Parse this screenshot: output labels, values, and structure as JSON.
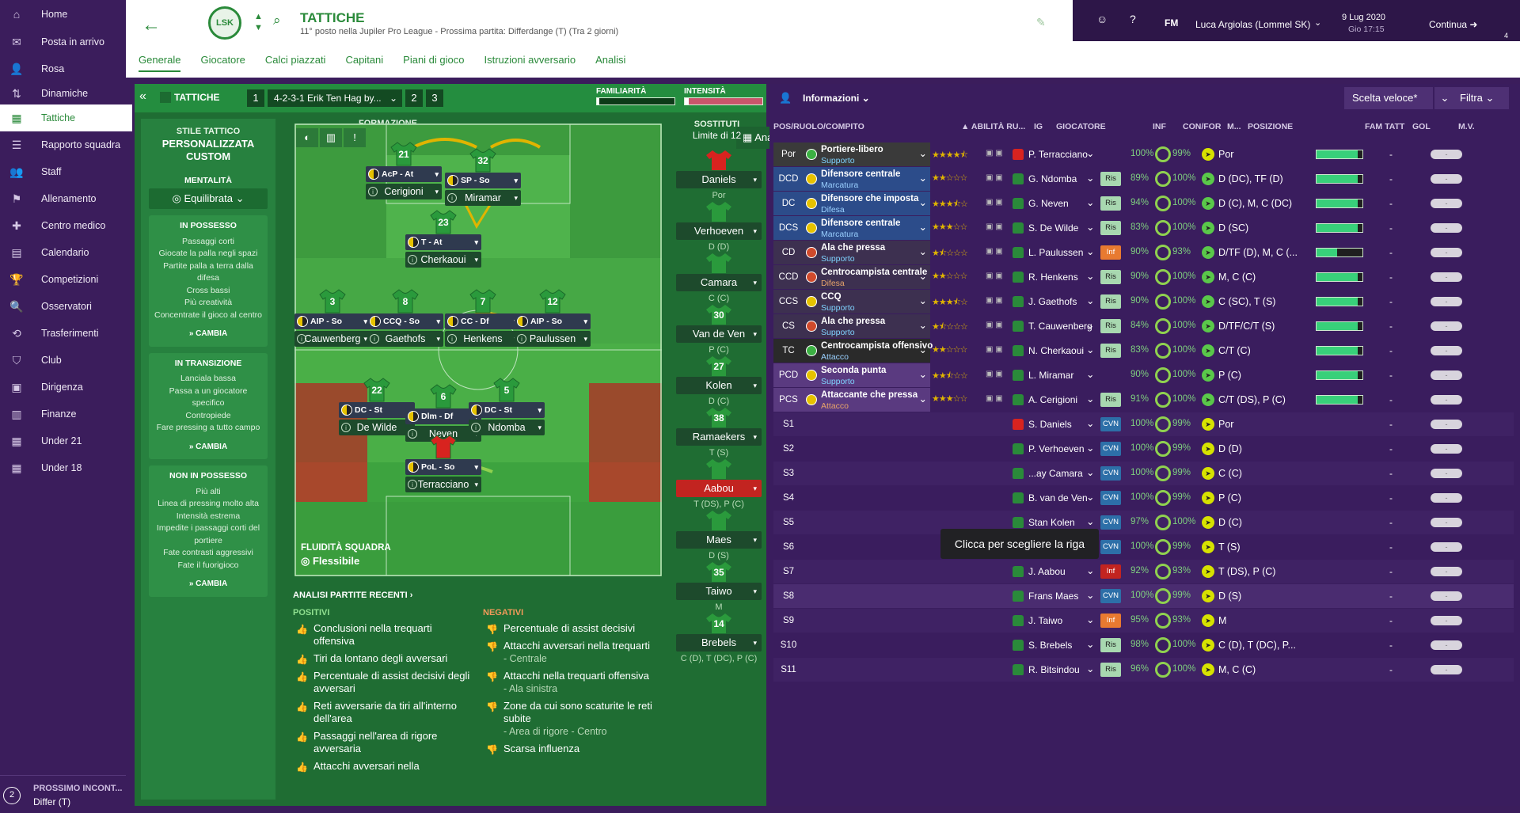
{
  "sidebar": {
    "items": [
      {
        "label": "Home",
        "icon": "home-icon",
        "glyph": "⌂"
      },
      {
        "label": "Posta in arrivo",
        "icon": "inbox-icon",
        "glyph": "✉"
      },
      {
        "label": "Rosa",
        "icon": "squad-icon",
        "glyph": "👤"
      },
      {
        "label": "Dinamiche",
        "icon": "dynamics-icon",
        "glyph": "⇅"
      },
      {
        "label": "Tattiche",
        "icon": "tactics-icon",
        "glyph": "▦"
      },
      {
        "label": "Rapporto squadra",
        "icon": "report-icon",
        "glyph": "☰"
      },
      {
        "label": "Staff",
        "icon": "staff-icon",
        "glyph": "👥"
      },
      {
        "label": "Allenamento",
        "icon": "training-icon",
        "glyph": "⚑"
      },
      {
        "label": "Centro medico",
        "icon": "medical-icon",
        "glyph": "✚"
      },
      {
        "label": "Calendario",
        "icon": "calendar-icon",
        "glyph": "▤"
      },
      {
        "label": "Competizioni",
        "icon": "trophy-icon",
        "glyph": "🏆"
      },
      {
        "label": "Osservatori",
        "icon": "scout-icon",
        "glyph": "🔍"
      },
      {
        "label": "Trasferimenti",
        "icon": "transfer-icon",
        "glyph": "⟲"
      },
      {
        "label": "Club",
        "icon": "club-icon",
        "glyph": "⛉"
      },
      {
        "label": "Dirigenza",
        "icon": "board-icon",
        "glyph": "▣"
      },
      {
        "label": "Finanze",
        "icon": "finance-icon",
        "glyph": "▥"
      },
      {
        "label": "Under 21",
        "icon": "u21-icon",
        "glyph": "▦"
      },
      {
        "label": "Under 18",
        "icon": "u18-icon",
        "glyph": "▦"
      }
    ],
    "next_match_label": "PROSSIMO INCONT...",
    "next_match_value": "Differ (T)",
    "next_badge": "2"
  },
  "header": {
    "title": "TATTICHE",
    "subtitle": "11° posto nella Jupiler Pro League - Prossima partita: Differdange (T) (Tra 2 giorni)",
    "tabs": [
      "Generale",
      "Giocatore",
      "Calci piazzati",
      "Capitani",
      "Piani di gioco",
      "Istruzioni avversario",
      "Analisi"
    ]
  },
  "topbar": {
    "manager": "Luca Argiolas (Lommel SK)",
    "fm": "FM",
    "date": "9 Lug 2020",
    "time": "Gio 17:15",
    "continue": "Continua",
    "badge": "4"
  },
  "tactic_bar": {
    "title": "TATTICHE",
    "slot1": "1",
    "tactic_name": "4-2-3-1 Erik Ten Hag by...",
    "slot2": "2",
    "slot3": "3",
    "familiarity_label": "FAMILIARITÀ",
    "intensity_label": "INTENSITÀ",
    "familiarity": 0.03,
    "intensity": 0.05
  },
  "style": {
    "label": "STILE TATTICO",
    "value": "PERSONALIZZATA CUSTOM",
    "mentality_label": "MENTALITÀ",
    "mentality": "Equilibrata",
    "in_possession": {
      "title": "IN POSSESSO",
      "items": [
        "Passaggi corti",
        "Giocate la palla negli spazi",
        "Partite palla a terra dalla difesa",
        "Cross bassi",
        "Più creatività",
        "Concentrate il gioco al centro"
      ],
      "change": "CAMBIA"
    },
    "transition": {
      "title": "IN TRANSIZIONE",
      "items": [
        "Lanciala bassa",
        "Passa a un giocatore specifico",
        "Contropiede",
        "Fare pressing a tutto campo"
      ],
      "change": "CAMBIA"
    },
    "out_possession": {
      "title": "NON IN POSSESSO",
      "items": [
        "Più alti",
        "Linea di pressing molto alta",
        "Intensità estrema",
        "Impedite i passaggi corti del portiere",
        "Fate contrasti aggressivi",
        "Fate il fuorigioco"
      ],
      "change": "CAMBIA"
    }
  },
  "formation": {
    "label": "FORMAZIONE",
    "value": "3-4-1-2",
    "analysis": "Analisi",
    "fluidity_label": "FLUIDITÀ SQUADRA",
    "fluidity": "Flessibile"
  },
  "pitch_players": [
    {
      "num": "21",
      "role": "AcP - At",
      "name": "Cerigioni"
    },
    {
      "num": "32",
      "role": "SP - So",
      "name": "Miramar"
    },
    {
      "num": "23",
      "role": "T - At",
      "name": "Cherkaoui"
    },
    {
      "num": "3",
      "role": "AIP - So",
      "name": "Cauwenberg"
    },
    {
      "num": "8",
      "role": "CCQ - So",
      "name": "Gaethofs"
    },
    {
      "num": "7",
      "role": "CC - Df",
      "name": "Henkens"
    },
    {
      "num": "12",
      "role": "AIP - So",
      "name": "Paulussen"
    },
    {
      "num": "22",
      "role": "DC - St",
      "name": "De Wilde"
    },
    {
      "num": "6",
      "role": "Dlm - Df",
      "name": "Neven"
    },
    {
      "num": "5",
      "role": "DC - St",
      "name": "Ndomba"
    },
    {
      "num": "",
      "role": "PoL - So",
      "name": "Terracciano"
    }
  ],
  "subs": {
    "label": "SOSTITUTI",
    "limit": "Limite di 12",
    "list": [
      {
        "num": "",
        "name": "Daniels",
        "pos": "Por"
      },
      {
        "num": "",
        "name": "Verhoeven",
        "pos": "D (D)"
      },
      {
        "num": "",
        "name": "Camara",
        "pos": "C (C)"
      },
      {
        "num": "30",
        "name": "Van de Ven",
        "pos": "P (C)"
      },
      {
        "num": "27",
        "name": "Kolen",
        "pos": "D (C)"
      },
      {
        "num": "38",
        "name": "Ramaekers",
        "pos": "T (S)"
      },
      {
        "num": "",
        "name": "Aabou",
        "pos": "T (DS), P (C)"
      },
      {
        "num": "",
        "name": "Maes",
        "pos": "D (S)"
      },
      {
        "num": "35",
        "name": "Taiwo",
        "pos": "M"
      },
      {
        "num": "14",
        "name": "Brebels",
        "pos": "C (D), T (DC), P (C)"
      }
    ]
  },
  "recent": {
    "title": "ANALISI PARTITE RECENTI ›",
    "pos_label": "POSITIVI",
    "neg_label": "NEGATIVI",
    "positives": [
      {
        "t": "Conclusioni nella trequarti offensiva",
        "s": ""
      },
      {
        "t": "Tiri da lontano degli avversari",
        "s": ""
      },
      {
        "t": "Percentuale di assist decisivi degli avversari",
        "s": ""
      },
      {
        "t": "Reti avversarie da tiri all'interno dell'area",
        "s": ""
      },
      {
        "t": "Passaggi nell'area di rigore avversaria",
        "s": ""
      },
      {
        "t": "Attacchi avversari nella",
        "s": ""
      }
    ],
    "negatives": [
      {
        "t": "Percentuale di assist decisivi",
        "s": ""
      },
      {
        "t": "Attacchi avversari nella trequarti",
        "s": "- Centrale"
      },
      {
        "t": "Attacchi nella trequarti offensiva",
        "s": "- Ala sinistra"
      },
      {
        "t": "Zone da cui sono scaturite le reti subite",
        "s": "- Area di rigore - Centro"
      },
      {
        "t": "Scarsa influenza",
        "s": ""
      }
    ]
  },
  "info": {
    "title": "Informazioni",
    "quick": "Scelta veloce*",
    "filter": "Filtra",
    "tooltip": "Clicca per scegliere la riga",
    "headers": {
      "pos": "POS/RUOLO/COMPITO",
      "abil": "ABILITÀ RU...",
      "ig": "IG",
      "player": "GIOCATORE",
      "inf": "INF",
      "confor": "CON/FOR",
      "m": "M...",
      "posiz": "POSIZIONE",
      "fam": "FAM TATT",
      "gol": "GOL",
      "mv": "M.V."
    },
    "rows": [
      {
        "pos": "Por",
        "role": "Portiere-libero",
        "duty": "Supporto",
        "stars": 4.5,
        "player": "P. Terracciano",
        "inf": "",
        "con": "100%",
        "for": "99%",
        "posiz": "Por",
        "fam": 0.9,
        "gol": "-",
        "mv": "-",
        "bg": "#3a3a3a",
        "dot": "#3cb043",
        "infc": ""
      },
      {
        "pos": "DCD",
        "role": "Difensore centrale",
        "duty": "Marcatura",
        "stars": 2,
        "player": "G. Ndomba",
        "inf": "Ris",
        "con": "89%",
        "for": "100%",
        "posiz": "D (DC), TF (D)",
        "fam": 0.9,
        "gol": "-",
        "mv": "-",
        "bg": "#2c4c8a",
        "dot": "#e6c200",
        "infc": "#a8d8b0"
      },
      {
        "pos": "DC",
        "role": "Difensore che imposta",
        "duty": "Difesa",
        "stars": 3.5,
        "player": "G. Neven",
        "inf": "Ris",
        "con": "94%",
        "for": "100%",
        "posiz": "D (C), M, C (DC)",
        "fam": 0.9,
        "gol": "-",
        "mv": "-",
        "bg": "#2c4c8a",
        "dot": "#e6c200",
        "infc": "#a8d8b0"
      },
      {
        "pos": "DCS",
        "role": "Difensore centrale",
        "duty": "Marcatura",
        "stars": 3,
        "player": "S. De Wilde",
        "inf": "Ris",
        "con": "83%",
        "for": "100%",
        "posiz": "D (SC)",
        "fam": 0.9,
        "gol": "-",
        "mv": "-",
        "bg": "#2c4c8a",
        "dot": "#e6c200",
        "infc": "#a8d8b0"
      },
      {
        "pos": "CD",
        "role": "Ala che pressa",
        "duty": "Supporto",
        "stars": 1.5,
        "player": "L. Paulussen",
        "inf": "Inf",
        "con": "90%",
        "for": "93%",
        "posiz": "D/TF (D), M, C (...",
        "fam": 0.45,
        "gol": "-",
        "mv": "-",
        "bg": "#3d3050",
        "dot": "#d04a2c",
        "infc": "#e87a30"
      },
      {
        "pos": "CCD",
        "role": "Centrocampista centrale",
        "duty": "Difesa",
        "stars": 2,
        "player": "R. Henkens",
        "inf": "Ris",
        "con": "90%",
        "for": "100%",
        "posiz": "M, C (C)",
        "fam": 0.9,
        "gol": "-",
        "mv": "-",
        "bg": "#3d3050",
        "dot": "#d04a2c",
        "infc": "#a8d8b0"
      },
      {
        "pos": "CCS",
        "role": "CCQ",
        "duty": "Supporto",
        "stars": 3.5,
        "player": "J. Gaethofs",
        "inf": "Ris",
        "con": "90%",
        "for": "100%",
        "posiz": "C (SC), T (S)",
        "fam": 0.9,
        "gol": "-",
        "mv": "-",
        "bg": "#3d3050",
        "dot": "#e6c200",
        "infc": "#a8d8b0"
      },
      {
        "pos": "CS",
        "role": "Ala che pressa",
        "duty": "Supporto",
        "stars": 1.5,
        "player": "T. Cauwenberg",
        "inf": "Ris",
        "con": "84%",
        "for": "100%",
        "posiz": "D/TF/C/T (S)",
        "fam": 0.9,
        "gol": "-",
        "mv": "-",
        "bg": "#3d3050",
        "dot": "#d04a2c",
        "infc": "#a8d8b0"
      },
      {
        "pos": "TC",
        "role": "Centrocampista offensivo",
        "duty": "Attacco",
        "stars": 2,
        "player": "N. Cherkaoui",
        "inf": "Ris",
        "con": "83%",
        "for": "100%",
        "posiz": "C/T (C)",
        "fam": 0.9,
        "gol": "-",
        "mv": "-",
        "bg": "#2a2a2a",
        "dot": "#3cb043",
        "infc": "#a8d8b0"
      },
      {
        "pos": "PCD",
        "role": "Seconda punta",
        "duty": "Supporto",
        "stars": 2.5,
        "player": "L. Miramar",
        "inf": "",
        "con": "90%",
        "for": "100%",
        "posiz": "P (C)",
        "fam": 0.9,
        "gol": "-",
        "mv": "-",
        "bg": "#5a3a80",
        "dot": "#e6c200",
        "infc": ""
      },
      {
        "pos": "PCS",
        "role": "Attaccante che pressa",
        "duty": "Attacco",
        "stars": 3,
        "player": "A. Cerigioni",
        "inf": "Ris",
        "con": "91%",
        "for": "100%",
        "posiz": "C/T (DS), P (C)",
        "fam": 0.9,
        "gol": "-",
        "mv": "-",
        "bg": "#5a3a80",
        "dot": "#e6c200",
        "infc": "#a8d8b0"
      },
      {
        "pos": "S1",
        "role": "",
        "duty": "",
        "stars": 0,
        "player": "S. Daniels",
        "inf": "CVN",
        "con": "100%",
        "for": "99%",
        "posiz": "Por",
        "fam": 0,
        "gol": "-",
        "mv": "-",
        "bg": "",
        "dot": "",
        "infc": "#2d6fa8"
      },
      {
        "pos": "S2",
        "role": "",
        "duty": "",
        "stars": 0,
        "player": "P. Verhoeven",
        "inf": "CVN",
        "con": "100%",
        "for": "99%",
        "posiz": "D (D)",
        "fam": 0,
        "gol": "-",
        "mv": "-",
        "bg": "",
        "dot": "",
        "infc": "#2d6fa8"
      },
      {
        "pos": "S3",
        "role": "",
        "duty": "",
        "stars": 0,
        "player": "...ay Camara",
        "inf": "CVN",
        "con": "100%",
        "for": "99%",
        "posiz": "C (C)",
        "fam": 0,
        "gol": "-",
        "mv": "-",
        "bg": "",
        "dot": "",
        "infc": "#2d6fa8"
      },
      {
        "pos": "S4",
        "role": "",
        "duty": "",
        "stars": 0,
        "player": "B. van de Ven",
        "inf": "CVN",
        "con": "100%",
        "for": "99%",
        "posiz": "P (C)",
        "fam": 0,
        "gol": "-",
        "mv": "-",
        "bg": "",
        "dot": "",
        "infc": "#2d6fa8"
      },
      {
        "pos": "S5",
        "role": "",
        "duty": "",
        "stars": 0,
        "player": "Stan Kolen",
        "inf": "CVN",
        "con": "97%",
        "for": "100%",
        "posiz": "D (C)",
        "fam": 0,
        "gol": "-",
        "mv": "-",
        "bg": "",
        "dot": "",
        "infc": "#2d6fa8"
      },
      {
        "pos": "S6",
        "role": "",
        "duty": "",
        "stars": 0,
        "player": "J. Ramaekers",
        "inf": "CVN",
        "con": "100%",
        "for": "99%",
        "posiz": "T (S)",
        "fam": 0,
        "gol": "-",
        "mv": "-",
        "bg": "",
        "dot": "",
        "infc": "#2d6fa8"
      },
      {
        "pos": "S7",
        "role": "",
        "duty": "",
        "stars": 0,
        "player": "J. Aabou",
        "inf": "Inf",
        "con": "92%",
        "for": "93%",
        "posiz": "T (DS), P (C)",
        "fam": 0,
        "gol": "-",
        "mv": "-",
        "bg": "",
        "dot": "",
        "infc": "#c22420"
      },
      {
        "pos": "S8",
        "role": "",
        "duty": "",
        "stars": 0,
        "player": "Frans Maes",
        "inf": "CVN",
        "con": "100%",
        "for": "99%",
        "posiz": "D (S)",
        "fam": 0,
        "gol": "-",
        "mv": "-",
        "bg": "",
        "dot": "",
        "infc": "#2d6fa8"
      },
      {
        "pos": "S9",
        "role": "",
        "duty": "",
        "stars": 0,
        "player": "J. Taiwo",
        "inf": "Inf",
        "con": "95%",
        "for": "93%",
        "posiz": "M",
        "fam": 0,
        "gol": "-",
        "mv": "-",
        "bg": "",
        "dot": "",
        "infc": "#e87a30"
      },
      {
        "pos": "S10",
        "role": "",
        "duty": "",
        "stars": 0,
        "player": "S. Brebels",
        "inf": "Ris",
        "con": "98%",
        "for": "100%",
        "posiz": "C (D), T (DC), P...",
        "fam": 0,
        "gol": "-",
        "mv": "-",
        "bg": "",
        "dot": "",
        "infc": "#a8d8b0"
      },
      {
        "pos": "S11",
        "role": "",
        "duty": "",
        "stars": 0,
        "player": "R. Bitsindou",
        "inf": "Ris",
        "con": "96%",
        "for": "100%",
        "posiz": "M, C (C)",
        "fam": 0,
        "gol": "-",
        "mv": "-",
        "bg": "",
        "dot": "",
        "infc": "#a8d8b0"
      }
    ]
  }
}
